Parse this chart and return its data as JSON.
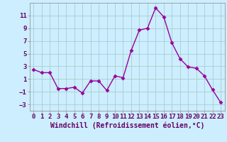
{
  "x": [
    0,
    1,
    2,
    3,
    4,
    5,
    6,
    7,
    8,
    9,
    10,
    11,
    12,
    13,
    14,
    15,
    16,
    17,
    18,
    19,
    20,
    21,
    22,
    23
  ],
  "y": [
    2.5,
    2.0,
    2.0,
    -0.5,
    -0.5,
    -0.3,
    -1.2,
    0.7,
    0.7,
    -0.8,
    1.5,
    1.2,
    5.5,
    8.7,
    9.0,
    12.2,
    10.8,
    6.7,
    4.2,
    2.9,
    2.7,
    1.5,
    -0.7,
    -2.7
  ],
  "line_color": "#990099",
  "marker": "D",
  "markersize": 2.5,
  "linewidth": 1.0,
  "bg_color": "#cceeff",
  "grid_color": "#aacccc",
  "xlabel": "Windchill (Refroidissement éolien,°C)",
  "xlabel_fontsize": 7,
  "tick_fontsize": 6.5,
  "xlim": [
    -0.5,
    23.5
  ],
  "ylim": [
    -4,
    13
  ],
  "yticks": [
    -3,
    -1,
    1,
    3,
    5,
    7,
    9,
    11
  ],
  "xticks": [
    0,
    1,
    2,
    3,
    4,
    5,
    6,
    7,
    8,
    9,
    10,
    11,
    12,
    13,
    14,
    15,
    16,
    17,
    18,
    19,
    20,
    21,
    22,
    23
  ]
}
